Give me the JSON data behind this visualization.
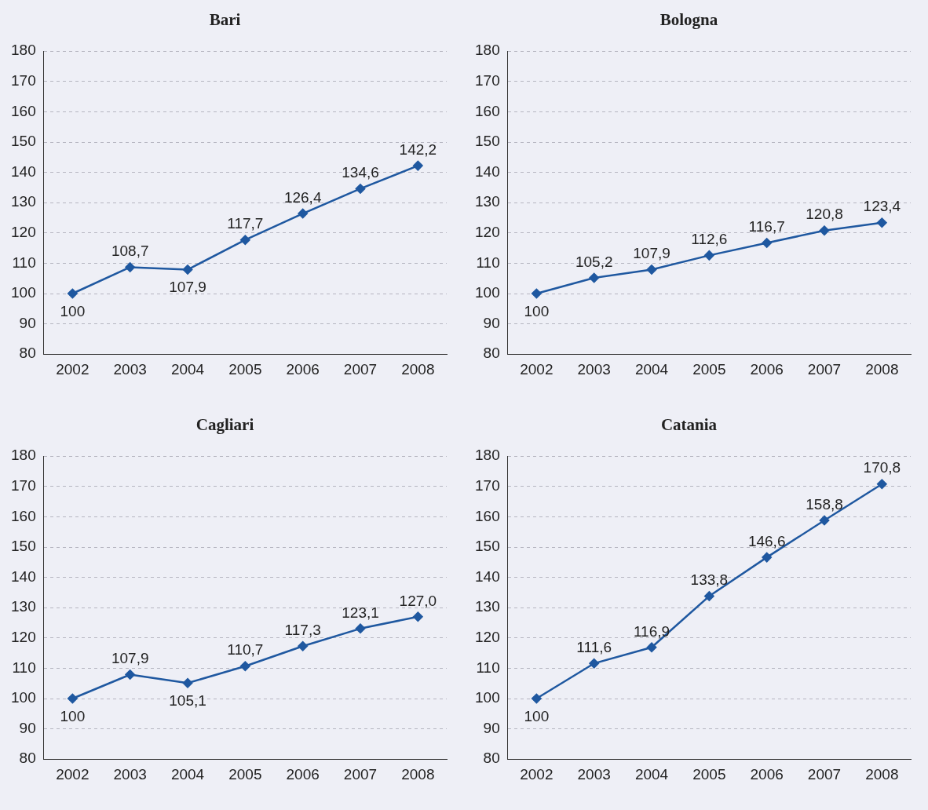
{
  "chart_data": [
    {
      "type": "line",
      "title": "Bari",
      "categories": [
        "2002",
        "2003",
        "2004",
        "2005",
        "2006",
        "2007",
        "2008"
      ],
      "series": [
        {
          "color": "#1f58a0",
          "values": [
            100,
            108.7,
            107.9,
            117.7,
            126.4,
            134.6,
            142.2
          ],
          "value_labels": [
            "100",
            "108,7",
            "107,9",
            "117,7",
            "126,4",
            "134,6",
            "142,2"
          ]
        }
      ],
      "ylim": [
        80,
        180
      ],
      "yticks": [
        80,
        90,
        100,
        110,
        120,
        130,
        140,
        150,
        160,
        170,
        180
      ],
      "grid": "y",
      "marker": "diamond",
      "line_style": "solid",
      "legend": false
    },
    {
      "type": "line",
      "title": "Bologna",
      "categories": [
        "2002",
        "2003",
        "2004",
        "2005",
        "2006",
        "2007",
        "2008"
      ],
      "series": [
        {
          "color": "#1f58a0",
          "values": [
            100,
            105.2,
            107.9,
            112.6,
            116.7,
            120.8,
            123.4
          ],
          "value_labels": [
            "100",
            "105,2",
            "107,9",
            "112,6",
            "116,7",
            "120,8",
            "123,4"
          ]
        }
      ],
      "ylim": [
        80,
        180
      ],
      "yticks": [
        80,
        90,
        100,
        110,
        120,
        130,
        140,
        150,
        160,
        170,
        180
      ],
      "grid": "y",
      "marker": "diamond",
      "line_style": "solid",
      "legend": false
    },
    {
      "type": "line",
      "title": "Cagliari",
      "categories": [
        "2002",
        "2003",
        "2004",
        "2005",
        "2006",
        "2007",
        "2008"
      ],
      "series": [
        {
          "color": "#1f58a0",
          "values": [
            100,
            107.9,
            105.1,
            110.7,
            117.3,
            123.1,
            127.0
          ],
          "value_labels": [
            "100",
            "107,9",
            "105,1",
            "110,7",
            "117,3",
            "123,1",
            "127,0"
          ]
        }
      ],
      "ylim": [
        80,
        180
      ],
      "yticks": [
        80,
        90,
        100,
        110,
        120,
        130,
        140,
        150,
        160,
        170,
        180
      ],
      "grid": "y",
      "marker": "diamond",
      "line_style": "solid",
      "legend": false
    },
    {
      "type": "line",
      "title": "Catania",
      "categories": [
        "2002",
        "2003",
        "2004",
        "2005",
        "2006",
        "2007",
        "2008"
      ],
      "series": [
        {
          "color": "#1f58a0",
          "values": [
            100,
            111.6,
            116.9,
            133.8,
            146.6,
            158.8,
            170.8
          ],
          "value_labels": [
            "100",
            "111,6",
            "116,9",
            "133,8",
            "146,6",
            "158,8",
            "170,8"
          ]
        }
      ],
      "ylim": [
        80,
        180
      ],
      "yticks": [
        80,
        90,
        100,
        110,
        120,
        130,
        140,
        150,
        160,
        170,
        180
      ],
      "grid": "y",
      "marker": "diamond",
      "line_style": "solid",
      "legend": false
    }
  ]
}
